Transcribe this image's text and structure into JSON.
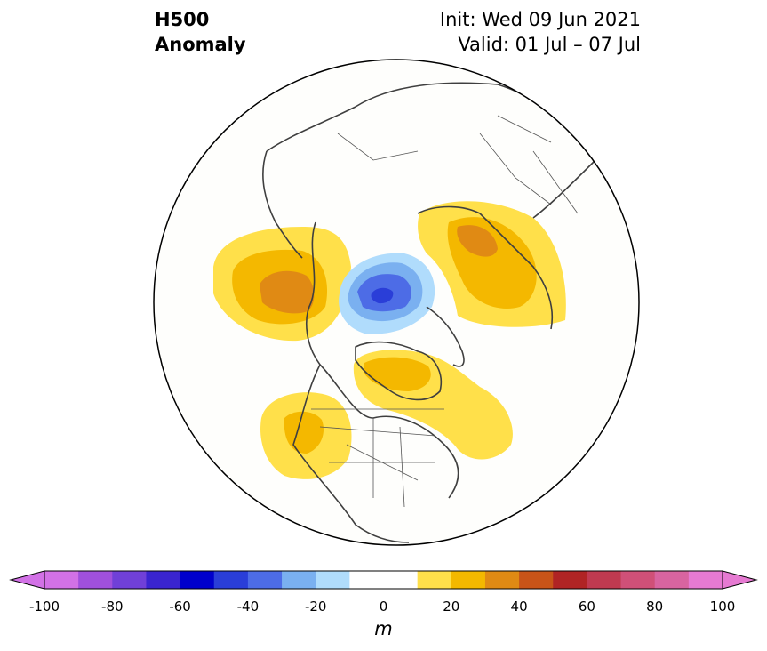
{
  "title": {
    "left_line1": "H500",
    "left_line2": "Anomaly",
    "init": "Init: Wed 09 Jun 2021",
    "valid": "Valid: 01 Jul – 07 Jul"
  },
  "colorbar": {
    "unit": "m",
    "ticks": [
      "-100",
      "-80",
      "-60",
      "-40",
      "-20",
      "0",
      "20",
      "40",
      "60",
      "80",
      "100"
    ],
    "colors": [
      "#d271e6",
      "#a050dc",
      "#7040d8",
      "#3a24d0",
      "#0000cc",
      "#2a3ed8",
      "#4d6ce6",
      "#7ab0f0",
      "#b0dcfc",
      "#ffffff",
      "#ffffff",
      "#ffe04a",
      "#f4b800",
      "#e08a14",
      "#c85418",
      "#b02424",
      "#c03a50",
      "#d05078",
      "#d864a0",
      "#e67ad2"
    ]
  },
  "map": {
    "projection": "north polar stereographic",
    "anomaly_colors": {
      "pos10": "#ffe04a",
      "pos20": "#f4b800",
      "pos30": "#e08a14",
      "neg10": "#b0dcfc",
      "neg20": "#7ab0f0",
      "neg30": "#4d6ce6",
      "neg40": "#2a3ed8"
    }
  }
}
